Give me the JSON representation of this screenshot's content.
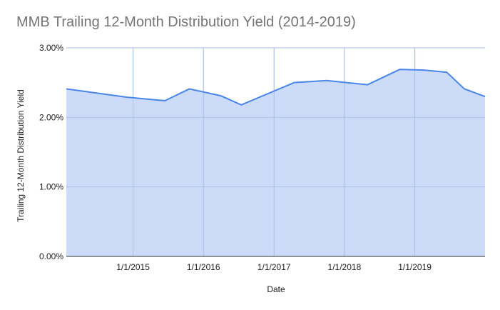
{
  "chart_data": {
    "type": "area",
    "title": "MMB Trailing 12-Month Distribution Yield (2014-2019)",
    "xlabel": "Date",
    "ylabel": "Trailing 12-Month Distribution Yield",
    "x_range": [
      "2014-01-20",
      "2019-12-31"
    ],
    "ylim": [
      0,
      0.03
    ],
    "y_ticks": [
      0,
      0.01,
      0.02,
      0.03
    ],
    "y_tick_labels": [
      "0.00%",
      "1.00%",
      "2.00%",
      "3.00%"
    ],
    "x_ticks": [
      "2015-01-01",
      "2016-01-01",
      "2017-01-01",
      "2018-01-01",
      "2019-01-01"
    ],
    "x_tick_labels": [
      "1/1/2015",
      "1/1/2016",
      "1/1/2017",
      "1/1/2018",
      "1/1/2019"
    ],
    "grid": true,
    "series": [
      {
        "line_color": "#4a86e8",
        "fill_color": "#c9daf8",
        "points": [
          {
            "x": "2014-01-20",
            "y": 0.0241
          },
          {
            "x": "2014-12-01",
            "y": 0.0229
          },
          {
            "x": "2015-06-15",
            "y": 0.0224
          },
          {
            "x": "2015-10-20",
            "y": 0.0241
          },
          {
            "x": "2016-04-01",
            "y": 0.0231
          },
          {
            "x": "2016-07-15",
            "y": 0.0218
          },
          {
            "x": "2017-04-15",
            "y": 0.025
          },
          {
            "x": "2017-10-01",
            "y": 0.0253
          },
          {
            "x": "2018-05-01",
            "y": 0.0247
          },
          {
            "x": "2018-10-15",
            "y": 0.0269
          },
          {
            "x": "2019-02-15",
            "y": 0.0268
          },
          {
            "x": "2019-06-15",
            "y": 0.0265
          },
          {
            "x": "2019-09-15",
            "y": 0.0241
          },
          {
            "x": "2019-12-31",
            "y": 0.023
          }
        ]
      }
    ]
  }
}
